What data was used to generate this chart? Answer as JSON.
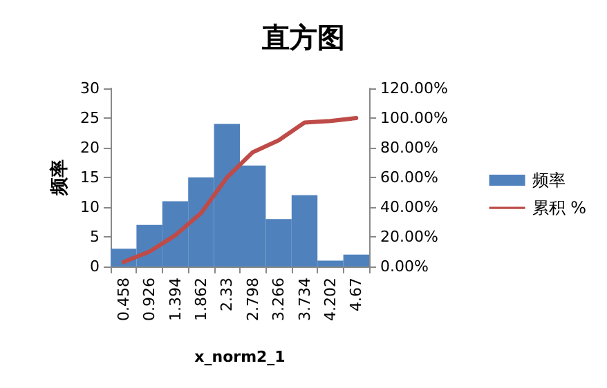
{
  "chart_data": {
    "type": "bar",
    "title": "直方图",
    "xlabel": "x_norm2_1",
    "ylabel": "频率",
    "categories": [
      "0.458",
      "0.926",
      "1.394",
      "1.862",
      "2.33",
      "2.798",
      "3.266",
      "3.734",
      "4.202",
      "4.67"
    ],
    "series": [
      {
        "name": "频率",
        "color": "#4f81bd",
        "values": [
          3,
          7,
          11,
          15,
          24,
          17,
          8,
          12,
          1,
          2
        ]
      },
      {
        "name": "累积 %",
        "type": "line",
        "axis": "y2",
        "color": "#be4b48",
        "values": [
          3,
          10,
          21,
          36,
          60,
          77,
          85,
          97,
          98,
          100
        ]
      }
    ],
    "ylim": [
      0,
      30
    ],
    "yticks": [
      0,
      5,
      10,
      15,
      20,
      25,
      30
    ],
    "y2lim": [
      0,
      120
    ],
    "y2ticks": [
      {
        "value": 0,
        "label": "0.00%"
      },
      {
        "value": 20,
        "label": "20.00%"
      },
      {
        "value": 40,
        "label": "40.00%"
      },
      {
        "value": 60,
        "label": "60.00%"
      },
      {
        "value": 80,
        "label": "80.00%"
      },
      {
        "value": 100,
        "label": "100.00%"
      },
      {
        "value": 120,
        "label": "120.00%"
      }
    ],
    "legend": "right",
    "marker": "none",
    "grid": false
  }
}
